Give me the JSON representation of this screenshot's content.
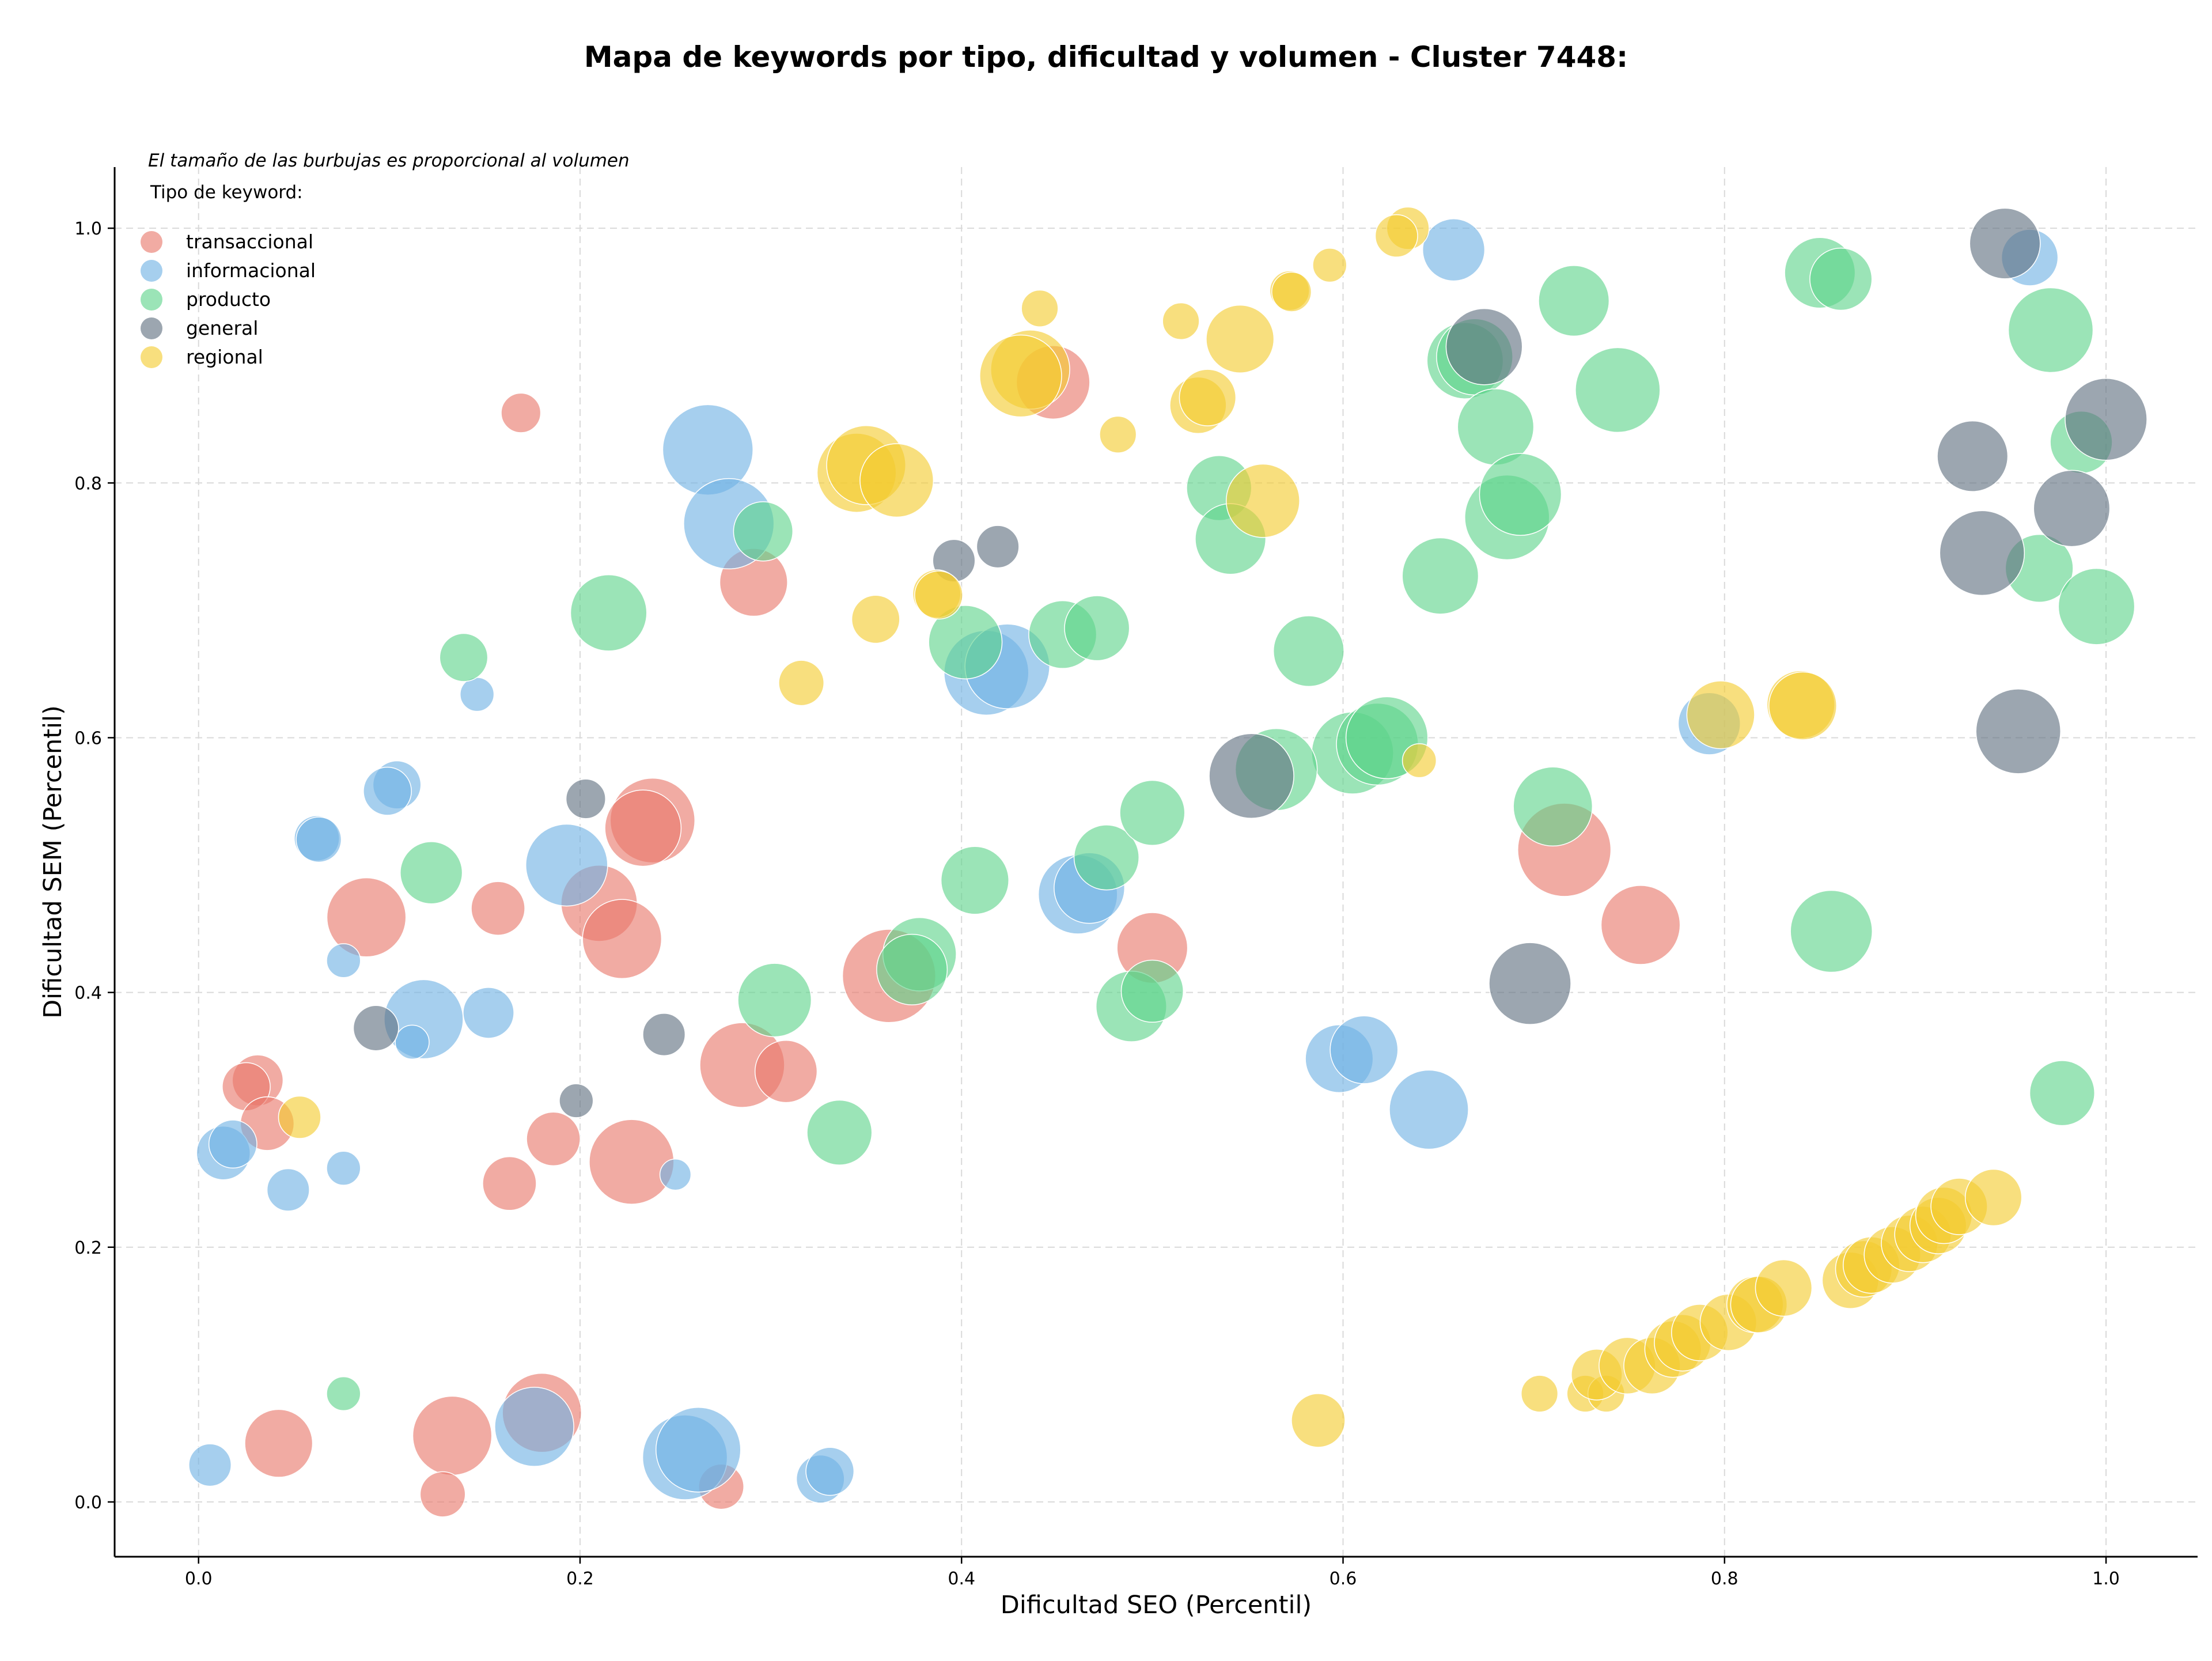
{
  "chart_data": {
    "type": "scatter",
    "title": "Mapa de keywords por tipo, dificultad y volumen - Cluster 7448:",
    "xlabel": "Dificultad SEO (Percentil)",
    "ylabel": "Dificultad SEM (Percentil)",
    "xlim": [
      -0.044,
      1.048
    ],
    "ylim": [
      -0.043,
      1.048
    ],
    "x_ticks": [
      0.0,
      0.2,
      0.4,
      0.6,
      0.8,
      1.0
    ],
    "y_ticks": [
      0.0,
      0.2,
      0.4,
      0.6,
      0.8,
      1.0
    ],
    "x_tick_labels": [
      "0.0",
      "0.2",
      "0.4",
      "0.6",
      "0.8",
      "1.0"
    ],
    "y_tick_labels": [
      "0.0",
      "0.2",
      "0.4",
      "0.6",
      "0.8",
      "1.0"
    ],
    "grid": true,
    "legend_position": "top-left",
    "annotation": "El tamaño de las burbujas es proporcional al volumen",
    "legend_title": "Tipo de keyword:",
    "series": [
      {
        "name": "transaccional",
        "color": "#e8776b",
        "points": [
          [
            0.169,
            0.855,
            14
          ],
          [
            0.448,
            0.879,
            26
          ],
          [
            0.291,
            0.722,
            24
          ],
          [
            0.088,
            0.459,
            28
          ],
          [
            0.157,
            0.466,
            19
          ],
          [
            0.21,
            0.47,
            27
          ],
          [
            0.222,
            0.442,
            28
          ],
          [
            0.238,
            0.535,
            30
          ],
          [
            0.233,
            0.529,
            27
          ],
          [
            0.362,
            0.413,
            33
          ],
          [
            0.285,
            0.343,
            30
          ],
          [
            0.308,
            0.338,
            22
          ],
          [
            0.5,
            0.435,
            25
          ],
          [
            0.031,
            0.331,
            18
          ],
          [
            0.025,
            0.326,
            17
          ],
          [
            0.036,
            0.297,
            19
          ],
          [
            0.186,
            0.285,
            19
          ],
          [
            0.163,
            0.25,
            19
          ],
          [
            0.227,
            0.267,
            30
          ],
          [
            0.042,
            0.046,
            24
          ],
          [
            0.133,
            0.052,
            28
          ],
          [
            0.18,
            0.07,
            28
          ],
          [
            0.128,
            0.006,
            16
          ],
          [
            0.274,
            0.012,
            16
          ],
          [
            0.716,
            0.512,
            33
          ],
          [
            0.756,
            0.453,
            28
          ]
        ]
      },
      {
        "name": "informacional",
        "color": "#6fb1e4",
        "points": [
          [
            0.267,
            0.826,
            32
          ],
          [
            0.278,
            0.768,
            32
          ],
          [
            0.146,
            0.634,
            12
          ],
          [
            0.104,
            0.563,
            17
          ],
          [
            0.099,
            0.558,
            17
          ],
          [
            0.062,
            0.521,
            16
          ],
          [
            0.063,
            0.52,
            16
          ],
          [
            0.193,
            0.5,
            29
          ],
          [
            0.076,
            0.425,
            12
          ],
          [
            0.118,
            0.379,
            28
          ],
          [
            0.152,
            0.384,
            18
          ],
          [
            0.112,
            0.361,
            12
          ],
          [
            0.413,
            0.651,
            30
          ],
          [
            0.424,
            0.656,
            30
          ],
          [
            0.461,
            0.477,
            28
          ],
          [
            0.467,
            0.482,
            25
          ],
          [
            0.013,
            0.274,
            19
          ],
          [
            0.018,
            0.281,
            17
          ],
          [
            0.047,
            0.245,
            15
          ],
          [
            0.076,
            0.262,
            12
          ],
          [
            0.25,
            0.257,
            11
          ],
          [
            0.176,
            0.059,
            28
          ],
          [
            0.255,
            0.035,
            30
          ],
          [
            0.262,
            0.041,
            30
          ],
          [
            0.326,
            0.018,
            17
          ],
          [
            0.331,
            0.024,
            17
          ],
          [
            0.006,
            0.029,
            15
          ],
          [
            0.598,
            0.348,
            24
          ],
          [
            0.611,
            0.355,
            24
          ],
          [
            0.645,
            0.308,
            28
          ],
          [
            0.658,
            0.983,
            22
          ],
          [
            0.792,
            0.611,
            22
          ],
          [
            0.96,
            0.977,
            20
          ]
        ]
      },
      {
        "name": "producto",
        "color": "#5ed48b",
        "points": [
          [
            0.139,
            0.663,
            17
          ],
          [
            0.215,
            0.698,
            27
          ],
          [
            0.296,
            0.762,
            21
          ],
          [
            0.122,
            0.494,
            22
          ],
          [
            0.402,
            0.675,
            26
          ],
          [
            0.453,
            0.681,
            24
          ],
          [
            0.471,
            0.686,
            23
          ],
          [
            0.407,
            0.488,
            24
          ],
          [
            0.378,
            0.43,
            26
          ],
          [
            0.374,
            0.418,
            25
          ],
          [
            0.302,
            0.394,
            26
          ],
          [
            0.336,
            0.29,
            23
          ],
          [
            0.476,
            0.506,
            23
          ],
          [
            0.5,
            0.541,
            23
          ],
          [
            0.489,
            0.389,
            25
          ],
          [
            0.5,
            0.401,
            22
          ],
          [
            0.535,
            0.796,
            23
          ],
          [
            0.541,
            0.756,
            25
          ],
          [
            0.582,
            0.668,
            25
          ],
          [
            0.651,
            0.727,
            27
          ],
          [
            0.605,
            0.588,
            29
          ],
          [
            0.618,
            0.595,
            29
          ],
          [
            0.623,
            0.6,
            29
          ],
          [
            0.565,
            0.575,
            29
          ],
          [
            0.664,
            0.896,
            27
          ],
          [
            0.669,
            0.899,
            27
          ],
          [
            0.68,
            0.844,
            27
          ],
          [
            0.686,
            0.773,
            30
          ],
          [
            0.693,
            0.791,
            29
          ],
          [
            0.71,
            0.546,
            28
          ],
          [
            0.721,
            0.943,
            25
          ],
          [
            0.744,
            0.873,
            30
          ],
          [
            0.076,
            0.085,
            12
          ],
          [
            0.85,
            0.965,
            25
          ],
          [
            0.861,
            0.96,
            22
          ],
          [
            0.856,
            0.448,
            29
          ],
          [
            0.971,
            0.92,
            30
          ],
          [
            0.987,
            0.832,
            22
          ],
          [
            0.965,
            0.733,
            24
          ],
          [
            0.995,
            0.703,
            27
          ],
          [
            0.977,
            0.321,
            23
          ]
        ]
      },
      {
        "name": "general",
        "color": "#5f6f80",
        "points": [
          [
            0.396,
            0.739,
            15
          ],
          [
            0.419,
            0.75,
            15
          ],
          [
            0.203,
            0.552,
            14
          ],
          [
            0.093,
            0.372,
            16
          ],
          [
            0.244,
            0.367,
            15
          ],
          [
            0.198,
            0.315,
            12
          ],
          [
            0.552,
            0.57,
            30
          ],
          [
            0.674,
            0.907,
            27
          ],
          [
            0.698,
            0.407,
            29
          ],
          [
            0.947,
            0.988,
            25
          ],
          [
            0.93,
            0.821,
            25
          ],
          [
            1.0,
            0.85,
            29
          ],
          [
            0.982,
            0.78,
            27
          ],
          [
            0.935,
            0.745,
            30
          ],
          [
            0.954,
            0.605,
            30
          ]
        ]
      },
      {
        "name": "regional",
        "color": "#f3cc2f",
        "points": [
          [
            0.634,
            1.0,
            15
          ],
          [
            0.628,
            0.994,
            15
          ],
          [
            0.593,
            0.971,
            12
          ],
          [
            0.572,
            0.951,
            14
          ],
          [
            0.573,
            0.95,
            14
          ],
          [
            0.441,
            0.937,
            13
          ],
          [
            0.515,
            0.927,
            13
          ],
          [
            0.546,
            0.913,
            24
          ],
          [
            0.436,
            0.889,
            28
          ],
          [
            0.431,
            0.884,
            29
          ],
          [
            0.524,
            0.861,
            20
          ],
          [
            0.529,
            0.867,
            20
          ],
          [
            0.482,
            0.838,
            13
          ],
          [
            0.345,
            0.808,
            28
          ],
          [
            0.35,
            0.814,
            28
          ],
          [
            0.366,
            0.802,
            26
          ],
          [
            0.558,
            0.786,
            26
          ],
          [
            0.387,
            0.713,
            17
          ],
          [
            0.388,
            0.712,
            17
          ],
          [
            0.355,
            0.693,
            17
          ],
          [
            0.316,
            0.643,
            16
          ],
          [
            0.64,
            0.582,
            12
          ],
          [
            0.053,
            0.302,
            15
          ],
          [
            0.587,
            0.064,
            19
          ],
          [
            0.798,
            0.618,
            24
          ],
          [
            0.84,
            0.626,
            24
          ],
          [
            0.841,
            0.625,
            24
          ],
          [
            0.703,
            0.085,
            13
          ],
          [
            0.727,
            0.085,
            13
          ],
          [
            0.738,
            0.085,
            13
          ],
          [
            0.733,
            0.1,
            18
          ],
          [
            0.749,
            0.107,
            20
          ],
          [
            0.762,
            0.107,
            20
          ],
          [
            0.773,
            0.12,
            20
          ],
          [
            0.778,
            0.125,
            20
          ],
          [
            0.787,
            0.133,
            20
          ],
          [
            0.802,
            0.141,
            20
          ],
          [
            0.816,
            0.155,
            20
          ],
          [
            0.818,
            0.155,
            20
          ],
          [
            0.831,
            0.168,
            20
          ],
          [
            0.866,
            0.174,
            20
          ],
          [
            0.873,
            0.183,
            20
          ],
          [
            0.877,
            0.186,
            20
          ],
          [
            0.888,
            0.194,
            20
          ],
          [
            0.897,
            0.203,
            20
          ],
          [
            0.904,
            0.21,
            20
          ],
          [
            0.912,
            0.217,
            20
          ],
          [
            0.915,
            0.225,
            20
          ],
          [
            0.923,
            0.232,
            20
          ],
          [
            0.941,
            0.239,
            20
          ]
        ]
      }
    ]
  }
}
